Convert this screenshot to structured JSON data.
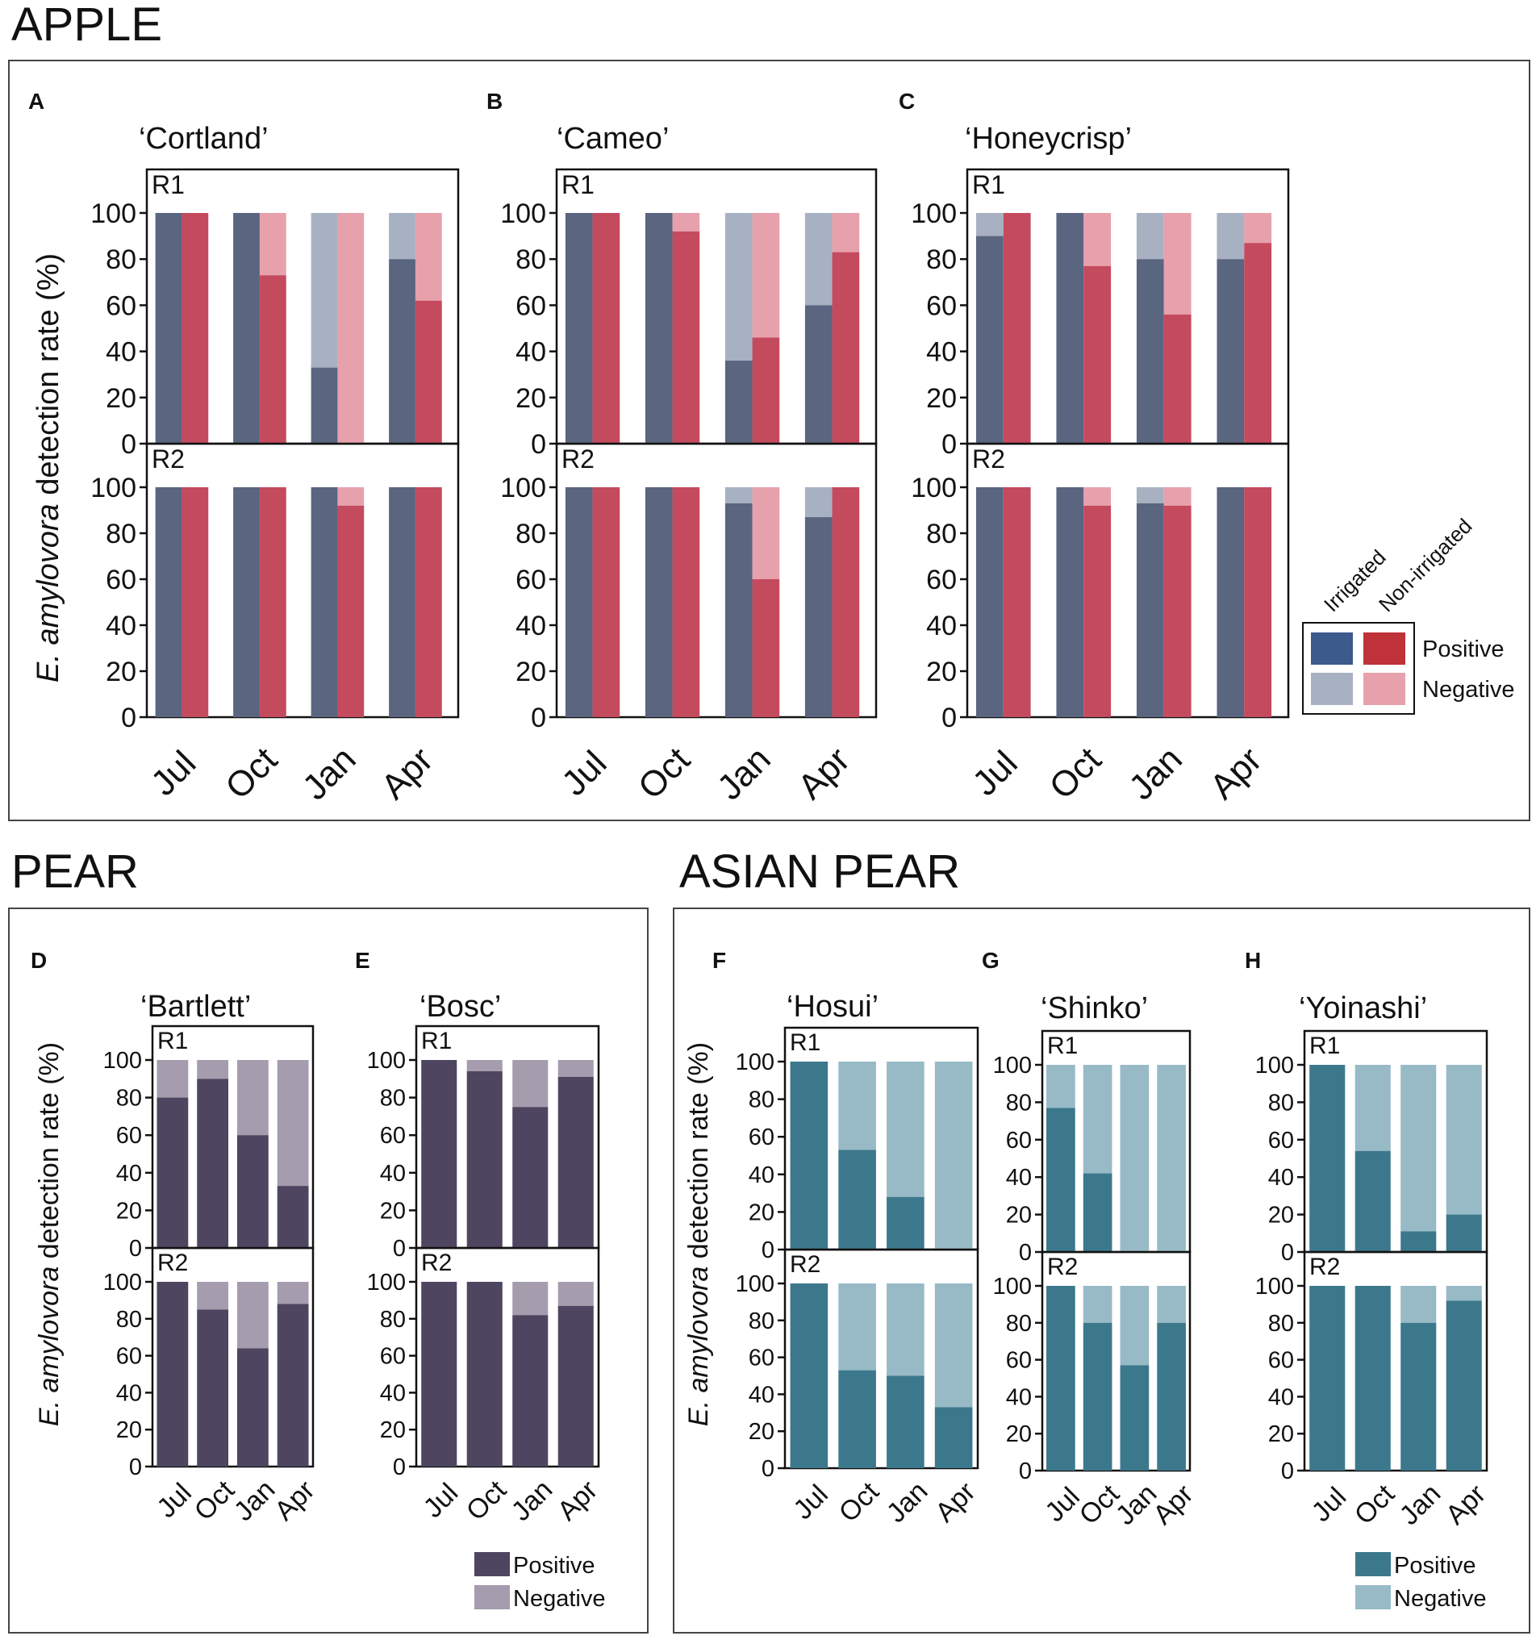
{
  "colors": {
    "irrigated_positive": "#5a6580",
    "irrigated_negative": "#a8b1c2",
    "nonirrigated_positive": "#c44a5e",
    "nonirrigated_negative": "#e7a1ac",
    "pear_positive": "#4e4660",
    "pear_negative": "#a59cae",
    "asian_positive": "#3c788c",
    "asian_negative": "#97bac6",
    "legend_irrigated_positive": "#3d5a8c",
    "legend_nonirrigated_positive": "#bf3239"
  },
  "sections": {
    "apple": "APPLE",
    "pear": "PEAR",
    "asian_pear": "ASIAN PEAR"
  },
  "y_axis_label": {
    "italic": "E. amylovora",
    "rest": " detection rate (%)"
  },
  "replicate_labels": [
    "R1",
    "R2"
  ],
  "apple_legend": {
    "col_irrigated": "Irrigated",
    "col_nonirrigated": "Non-irrigated",
    "row_positive": "Positive",
    "row_negative": "Negative"
  },
  "pear_legend": {
    "positive": "Positive",
    "negative": "Negative"
  },
  "asian_legend": {
    "positive": "Positive",
    "negative": "Negative"
  },
  "chart_data": [
    {
      "type": "bar",
      "panel": "A",
      "title": "‘Cortland’",
      "group": "APPLE",
      "categories": [
        "Jul",
        "Oct",
        "Jan",
        "Apr"
      ],
      "ylim": [
        0,
        100
      ],
      "yticks": [
        0,
        20,
        40,
        60,
        80,
        100
      ],
      "ylabel": "E. amylovora detection rate (%)",
      "series": [
        {
          "name": "Irrigated positive",
          "R1": [
            100,
            100,
            33,
            80
          ],
          "R2": [
            100,
            100,
            100,
            100
          ]
        },
        {
          "name": "Non-irrigated positive",
          "R1": [
            100,
            73,
            0,
            62
          ],
          "R2": [
            100,
            100,
            92,
            100
          ]
        }
      ]
    },
    {
      "type": "bar",
      "panel": "B",
      "title": "‘Cameo’",
      "group": "APPLE",
      "categories": [
        "Jul",
        "Oct",
        "Jan",
        "Apr"
      ],
      "ylim": [
        0,
        100
      ],
      "yticks": [
        0,
        20,
        40,
        60,
        80,
        100
      ],
      "series": [
        {
          "name": "Irrigated positive",
          "R1": [
            100,
            100,
            36,
            60
          ],
          "R2": [
            100,
            100,
            93,
            87
          ]
        },
        {
          "name": "Non-irrigated positive",
          "R1": [
            100,
            92,
            46,
            83
          ],
          "R2": [
            100,
            100,
            60,
            100
          ]
        }
      ]
    },
    {
      "type": "bar",
      "panel": "C",
      "title": "‘Honeycrisp’",
      "group": "APPLE",
      "categories": [
        "Jul",
        "Oct",
        "Jan",
        "Apr"
      ],
      "ylim": [
        0,
        100
      ],
      "yticks": [
        0,
        20,
        40,
        60,
        80,
        100
      ],
      "series": [
        {
          "name": "Irrigated positive",
          "R1": [
            90,
            100,
            80,
            80
          ],
          "R2": [
            100,
            100,
            93,
            100
          ]
        },
        {
          "name": "Non-irrigated positive",
          "R1": [
            100,
            77,
            56,
            87
          ],
          "R2": [
            100,
            92,
            92,
            100
          ]
        }
      ]
    },
    {
      "type": "bar",
      "panel": "D",
      "title": "‘Bartlett’",
      "group": "PEAR",
      "categories": [
        "Jul",
        "Oct",
        "Jan",
        "Apr"
      ],
      "ylim": [
        0,
        100
      ],
      "yticks": [
        0,
        20,
        40,
        60,
        80,
        100
      ],
      "series": [
        {
          "name": "Positive",
          "R1": [
            80,
            90,
            60,
            33
          ],
          "R2": [
            100,
            85,
            64,
            88
          ]
        }
      ]
    },
    {
      "type": "bar",
      "panel": "E",
      "title": "‘Bosc’",
      "group": "PEAR",
      "categories": [
        "Jul",
        "Oct",
        "Jan",
        "Apr"
      ],
      "ylim": [
        0,
        100
      ],
      "yticks": [
        0,
        20,
        40,
        60,
        80,
        100
      ],
      "series": [
        {
          "name": "Positive",
          "R1": [
            100,
            94,
            75,
            91
          ],
          "R2": [
            100,
            100,
            82,
            87
          ]
        }
      ]
    },
    {
      "type": "bar",
      "panel": "F",
      "title": "‘Hosui’",
      "group": "ASIAN PEAR",
      "categories": [
        "Jul",
        "Oct",
        "Jan",
        "Apr"
      ],
      "ylim": [
        0,
        100
      ],
      "yticks": [
        0,
        20,
        40,
        60,
        80,
        100
      ],
      "series": [
        {
          "name": "Positive",
          "R1": [
            100,
            53,
            28,
            0
          ],
          "R2": [
            100,
            53,
            50,
            33
          ]
        }
      ]
    },
    {
      "type": "bar",
      "panel": "G",
      "title": "‘Shinko’",
      "group": "ASIAN PEAR",
      "categories": [
        "Jul",
        "Oct",
        "Jan",
        "Apr"
      ],
      "ylim": [
        0,
        100
      ],
      "yticks": [
        0,
        20,
        40,
        60,
        80,
        100
      ],
      "series": [
        {
          "name": "Positive",
          "R1": [
            77,
            42,
            0,
            0
          ],
          "R2": [
            100,
            80,
            57,
            80
          ]
        }
      ]
    },
    {
      "type": "bar",
      "panel": "H",
      "title": "‘Yoinashi’",
      "group": "ASIAN PEAR",
      "categories": [
        "Jul",
        "Oct",
        "Jan",
        "Apr"
      ],
      "ylim": [
        0,
        100
      ],
      "yticks": [
        0,
        20,
        40,
        60,
        80,
        100
      ],
      "series": [
        {
          "name": "Positive",
          "R1": [
            100,
            54,
            11,
            20
          ],
          "R2": [
            100,
            100,
            80,
            92
          ]
        }
      ]
    }
  ]
}
